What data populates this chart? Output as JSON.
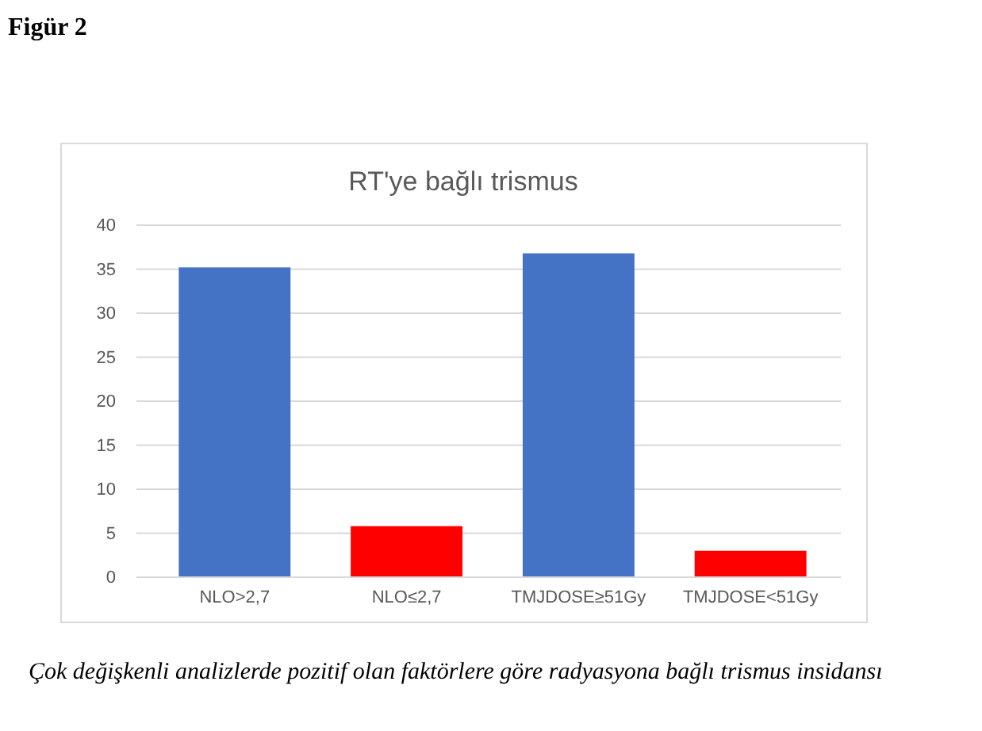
{
  "chart_data": {
    "type": "bar",
    "title": "RT'ye bağlı trismus",
    "categories": [
      "NLO>2,7",
      "NLO≤2,7",
      "TMJDOSE≥51Gy",
      "TMJDOSE<51Gy"
    ],
    "values": [
      35.2,
      5.8,
      36.8,
      3.0
    ],
    "colors": [
      "#4472c4",
      "#ff0000",
      "#4472c4",
      "#ff0000"
    ],
    "ylim": [
      0,
      40
    ],
    "yticks": [
      0,
      5,
      10,
      15,
      20,
      25,
      30,
      35,
      40
    ],
    "grid": "y",
    "annotations": [
      "Figür 2",
      "Çok değişkenli analizlerde pozitif olan faktörlere göre radyasyona bağlı trismus insidansı"
    ]
  }
}
